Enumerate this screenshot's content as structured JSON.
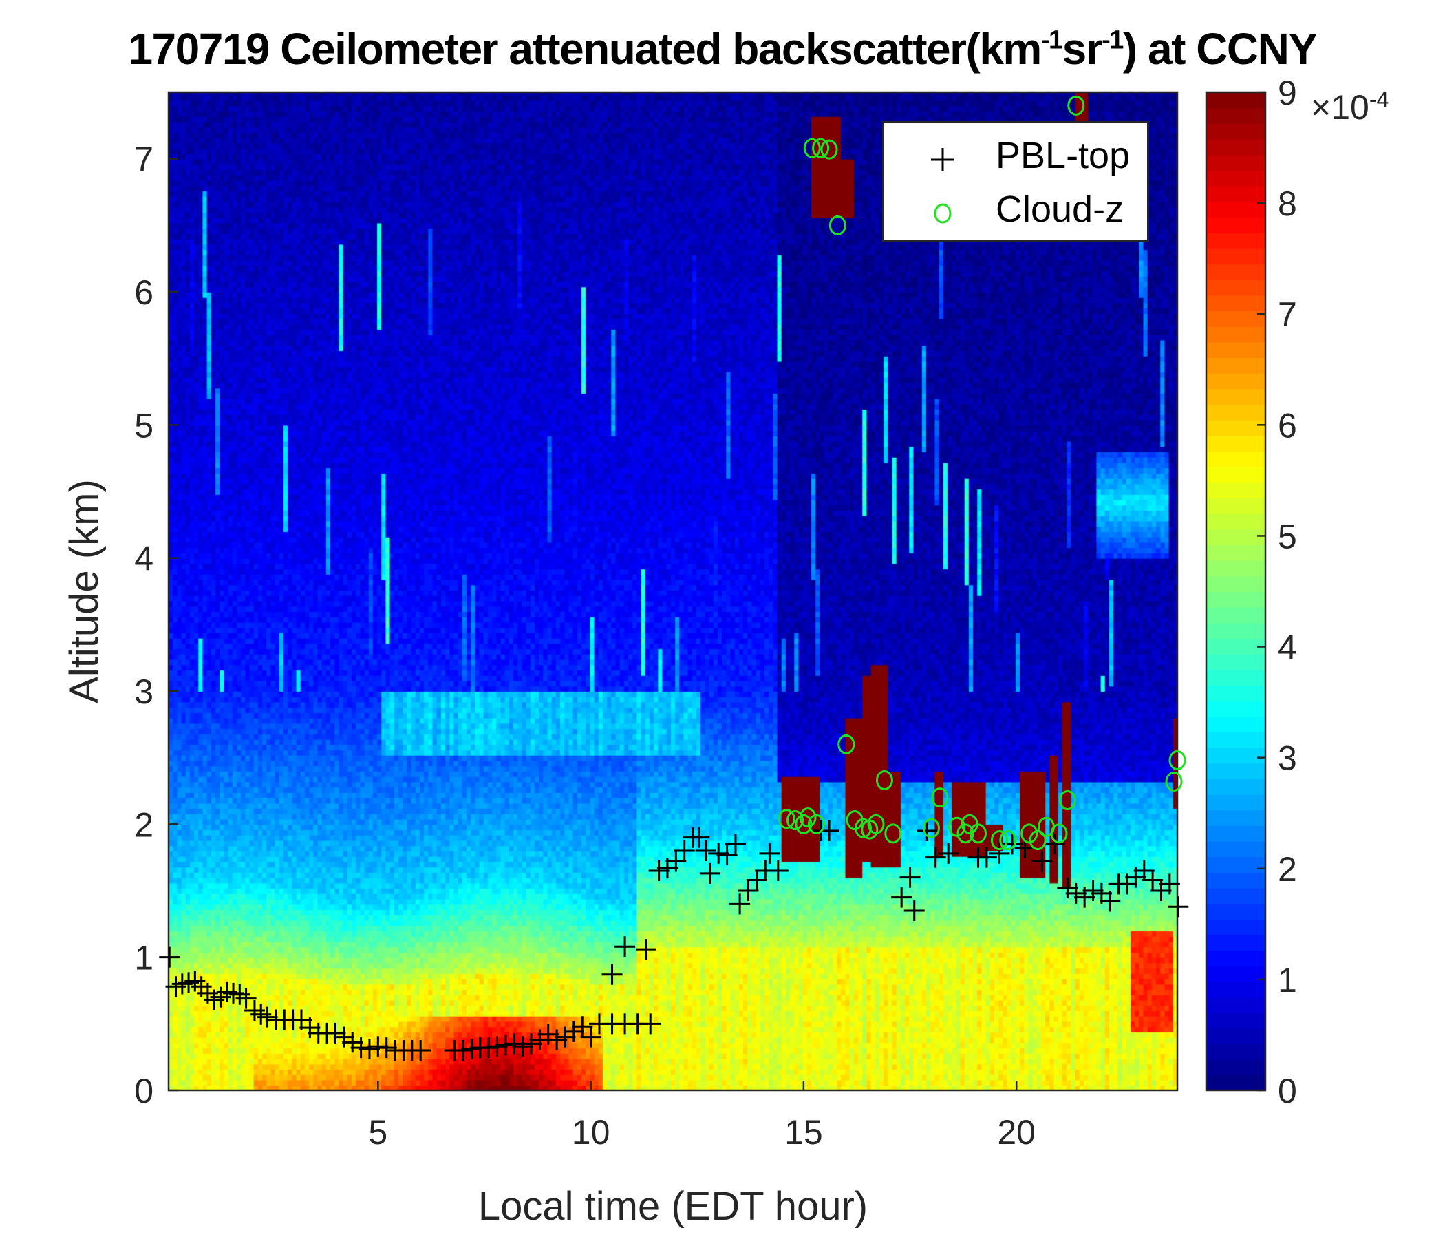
{
  "title": {
    "main": "170719 Ceilometer attenuated backscatter(km",
    "sup1": "-1",
    "mid": "sr",
    "sup2": "-1",
    "end": ") at CCNY"
  },
  "legend": {
    "pbl_label": "PBL-top",
    "cloud_label": "Cloud-z"
  },
  "colors": {
    "pbl": "#000000",
    "cloud": "#22e022",
    "axis": "#262626"
  },
  "colorbar": {
    "multiplier": "×10",
    "exponent": "-4",
    "ticks": [
      "0",
      "1",
      "2",
      "3",
      "4",
      "5",
      "6",
      "7",
      "8",
      "9"
    ],
    "range": [
      0,
      9
    ],
    "colormap": "jet"
  },
  "chart_data": {
    "type": "heatmap",
    "title": "170719 Ceilometer attenuated backscatter(km^-1 sr^-1) at CCNY",
    "xlabel": "Local time (EDT hour)",
    "ylabel": "Altitude (km)",
    "xlim": [
      0.08,
      23.78
    ],
    "ylim": [
      0,
      7.5
    ],
    "xticks": [
      5,
      10,
      15,
      20
    ],
    "xtick_labels": [
      "5",
      "10",
      "15",
      "20"
    ],
    "yticks": [
      0,
      1,
      2,
      3,
      4,
      5,
      6,
      7
    ],
    "ytick_labels": [
      "0",
      "1",
      "2",
      "3",
      "4",
      "5",
      "6",
      "7"
    ],
    "clim": [
      0,
      9
    ],
    "legend_position": "top-right",
    "series": [
      {
        "name": "PBL-top",
        "marker": "+",
        "points": [
          [
            0.1,
            1.0
          ],
          [
            0.25,
            0.78
          ],
          [
            0.4,
            0.8
          ],
          [
            0.55,
            0.81
          ],
          [
            0.7,
            0.82
          ],
          [
            0.85,
            0.78
          ],
          [
            1.0,
            0.73
          ],
          [
            1.15,
            0.68
          ],
          [
            1.3,
            0.7
          ],
          [
            1.45,
            0.74
          ],
          [
            1.6,
            0.73
          ],
          [
            1.75,
            0.72
          ],
          [
            1.9,
            0.69
          ],
          [
            2.1,
            0.6
          ],
          [
            2.25,
            0.57
          ],
          [
            2.4,
            0.55
          ],
          [
            2.6,
            0.53
          ],
          [
            2.8,
            0.53
          ],
          [
            3.0,
            0.53
          ],
          [
            3.2,
            0.53
          ],
          [
            3.4,
            0.47
          ],
          [
            3.6,
            0.43
          ],
          [
            3.8,
            0.43
          ],
          [
            4.0,
            0.43
          ],
          [
            4.2,
            0.4
          ],
          [
            4.4,
            0.36
          ],
          [
            4.6,
            0.32
          ],
          [
            4.8,
            0.31
          ],
          [
            5.0,
            0.33
          ],
          [
            5.2,
            0.32
          ],
          [
            5.4,
            0.3
          ],
          [
            5.6,
            0.3
          ],
          [
            5.8,
            0.3
          ],
          [
            6.0,
            0.3
          ],
          [
            6.8,
            0.3
          ],
          [
            7.0,
            0.3
          ],
          [
            7.2,
            0.31
          ],
          [
            7.4,
            0.32
          ],
          [
            7.6,
            0.32
          ],
          [
            7.8,
            0.33
          ],
          [
            8.0,
            0.34
          ],
          [
            8.2,
            0.35
          ],
          [
            8.4,
            0.33
          ],
          [
            8.6,
            0.35
          ],
          [
            8.8,
            0.38
          ],
          [
            9.0,
            0.42
          ],
          [
            9.2,
            0.38
          ],
          [
            9.4,
            0.4
          ],
          [
            9.6,
            0.44
          ],
          [
            9.8,
            0.48
          ],
          [
            10.0,
            0.4
          ],
          [
            10.2,
            0.5
          ],
          [
            10.5,
            0.5
          ],
          [
            10.8,
            0.5
          ],
          [
            11.1,
            0.5
          ],
          [
            11.4,
            0.5
          ],
          [
            10.5,
            0.87
          ],
          [
            10.8,
            1.08
          ],
          [
            11.3,
            1.06
          ],
          [
            11.6,
            1.65
          ],
          [
            11.8,
            1.67
          ],
          [
            12.0,
            1.72
          ],
          [
            12.2,
            1.8
          ],
          [
            12.4,
            1.9
          ],
          [
            12.55,
            1.9
          ],
          [
            12.7,
            1.8
          ],
          [
            12.8,
            1.63
          ],
          [
            13.0,
            1.78
          ],
          [
            13.2,
            1.77
          ],
          [
            13.4,
            1.85
          ],
          [
            13.5,
            1.4
          ],
          [
            13.7,
            1.5
          ],
          [
            13.9,
            1.58
          ],
          [
            14.1,
            1.65
          ],
          [
            14.2,
            1.78
          ],
          [
            14.4,
            1.65
          ],
          [
            15.4,
            1.95
          ],
          [
            15.6,
            1.95
          ],
          [
            17.3,
            1.45
          ],
          [
            17.5,
            1.6
          ],
          [
            17.6,
            1.35
          ],
          [
            17.9,
            1.95
          ],
          [
            18.1,
            1.75
          ],
          [
            18.4,
            1.78
          ],
          [
            19.1,
            1.75
          ],
          [
            19.3,
            1.75
          ],
          [
            19.6,
            1.78
          ],
          [
            19.9,
            1.85
          ],
          [
            20.2,
            1.82
          ],
          [
            20.6,
            1.72
          ],
          [
            20.9,
            1.85
          ],
          [
            21.2,
            1.52
          ],
          [
            21.4,
            1.48
          ],
          [
            21.6,
            1.45
          ],
          [
            21.8,
            1.5
          ],
          [
            22.0,
            1.48
          ],
          [
            22.2,
            1.42
          ],
          [
            22.4,
            1.55
          ],
          [
            22.6,
            1.55
          ],
          [
            22.8,
            1.6
          ],
          [
            23.0,
            1.65
          ],
          [
            23.2,
            1.58
          ],
          [
            23.4,
            1.5
          ],
          [
            23.6,
            1.55
          ],
          [
            23.8,
            1.38
          ]
        ]
      },
      {
        "name": "Cloud-z",
        "marker": "o",
        "points": [
          [
            15.2,
            7.08
          ],
          [
            15.4,
            7.08
          ],
          [
            15.6,
            7.07
          ],
          [
            15.8,
            6.5
          ],
          [
            14.6,
            2.04
          ],
          [
            14.8,
            2.03
          ],
          [
            15.0,
            2.0
          ],
          [
            15.1,
            2.05
          ],
          [
            15.3,
            2.0
          ],
          [
            16.0,
            2.6
          ],
          [
            16.2,
            2.03
          ],
          [
            16.4,
            1.97
          ],
          [
            16.55,
            1.96
          ],
          [
            16.7,
            2.0
          ],
          [
            16.9,
            2.33
          ],
          [
            17.1,
            1.93
          ],
          [
            18.0,
            1.97
          ],
          [
            18.2,
            2.2
          ],
          [
            18.6,
            1.98
          ],
          [
            18.8,
            1.93
          ],
          [
            18.9,
            2.0
          ],
          [
            19.1,
            1.93
          ],
          [
            19.6,
            1.88
          ],
          [
            19.8,
            1.88
          ],
          [
            20.3,
            1.93
          ],
          [
            20.5,
            1.88
          ],
          [
            20.7,
            1.98
          ],
          [
            21.0,
            1.93
          ],
          [
            21.2,
            2.18
          ],
          [
            21.4,
            7.4
          ],
          [
            23.7,
            2.32
          ],
          [
            23.78,
            2.48
          ]
        ]
      }
    ]
  }
}
